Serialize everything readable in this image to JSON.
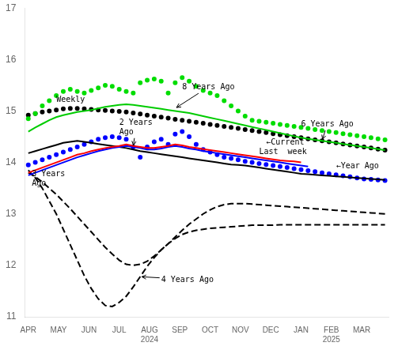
{
  "chart_data": {
    "type": "line",
    "x": [
      0,
      1,
      2,
      3,
      4,
      5,
      6,
      7,
      8,
      9,
      10,
      11,
      12,
      13,
      14,
      15,
      16,
      17,
      18,
      19,
      20,
      21,
      22,
      23,
      24,
      25,
      26,
      27,
      28,
      29,
      30,
      31,
      32,
      33,
      34,
      35,
      36,
      37,
      38,
      39,
      40,
      41,
      42,
      43,
      44,
      45,
      46,
      47,
      48,
      49,
      50,
      51
    ],
    "xlim": [
      -0.5,
      51.5
    ],
    "xticks": [
      {
        "value": 0,
        "label": "APR"
      },
      {
        "value": 4.333333333333333,
        "label": "MAY"
      },
      {
        "value": 8.666666666666666,
        "label": "JUN"
      },
      {
        "value": 13,
        "label": "JUL"
      },
      {
        "value": 17.333333333333332,
        "label": "AUG\n2024"
      },
      {
        "value": 21.666666666666668,
        "label": "SEP"
      },
      {
        "value": 26,
        "label": "OCT"
      },
      {
        "value": 30.333333333333332,
        "label": "NOV"
      },
      {
        "value": 34.666666666666664,
        "label": "DEC"
      },
      {
        "value": 39,
        "label": "JAN"
      },
      {
        "value": 43.333333333333336,
        "label": "FEB\n2025"
      },
      {
        "value": 47.666666666666664,
        "label": "MAR"
      }
    ],
    "ylim": [
      11,
      17
    ],
    "yticks": [
      11,
      12,
      13,
      14,
      15,
      16,
      17
    ],
    "grid": false,
    "series": [
      {
        "color": "#000000",
        "line_style": "dashed",
        "marker": "none",
        "values": [
          13.85,
          13.7,
          13.5,
          13.25,
          13.0,
          12.7,
          12.4,
          12.1,
          11.8,
          11.55,
          11.35,
          11.22,
          11.2,
          11.28,
          11.4,
          11.58,
          11.78,
          11.98,
          12.15,
          12.3,
          12.42,
          12.52,
          12.6,
          12.65,
          12.68,
          12.7,
          12.72,
          12.73,
          12.74,
          12.75,
          12.76,
          12.77,
          12.78,
          12.78,
          12.78,
          12.78,
          12.79,
          12.79,
          12.79,
          12.79,
          12.79,
          12.79,
          12.79,
          12.79,
          12.79,
          12.79,
          12.79,
          12.79,
          12.79,
          12.79,
          12.79,
          12.79
        ]
      },
      {
        "color": "#000000",
        "line_style": "dashed",
        "marker": "none",
        "values": [
          13.8,
          13.72,
          13.62,
          13.5,
          13.38,
          13.24,
          13.1,
          12.95,
          12.8,
          12.65,
          12.5,
          12.35,
          12.22,
          12.1,
          12.02,
          12.0,
          12.02,
          12.08,
          12.18,
          12.3,
          12.42,
          12.55,
          12.68,
          12.8,
          12.9,
          13.0,
          13.08,
          13.14,
          13.18,
          13.2,
          13.2,
          13.2,
          13.19,
          13.18,
          13.17,
          13.16,
          13.15,
          13.14,
          13.13,
          13.12,
          13.11,
          13.1,
          13.09,
          13.08,
          13.07,
          13.06,
          13.05,
          13.04,
          13.03,
          13.02,
          13.01,
          13.0
        ]
      },
      {
        "color": "#000000",
        "line_style": "none",
        "marker": "circle",
        "values": [
          14.92,
          14.95,
          14.98,
          15.0,
          15.02,
          15.04,
          15.05,
          15.05,
          15.04,
          15.03,
          15.02,
          15.01,
          15.0,
          14.99,
          14.98,
          14.96,
          14.94,
          14.92,
          14.9,
          14.88,
          14.86,
          14.84,
          14.82,
          14.8,
          14.78,
          14.76,
          14.74,
          14.72,
          14.7,
          14.68,
          14.66,
          14.64,
          14.62,
          14.6,
          14.58,
          14.56,
          14.54,
          14.52,
          14.5,
          14.48,
          14.46,
          14.44,
          14.42,
          14.4,
          14.38,
          14.36,
          14.34,
          14.32,
          14.3,
          14.28,
          14.26,
          14.24
        ]
      },
      {
        "color": "#0000FF",
        "line_style": "none",
        "marker": "circle",
        "values": [
          13.95,
          14.0,
          14.05,
          14.1,
          14.15,
          14.2,
          14.25,
          14.3,
          14.35,
          14.4,
          14.45,
          14.48,
          14.5,
          14.48,
          14.45,
          14.3,
          14.1,
          14.3,
          14.4,
          14.45,
          14.35,
          14.55,
          14.6,
          14.5,
          14.35,
          14.25,
          14.2,
          14.15,
          14.1,
          14.08,
          14.05,
          14.02,
          14.0,
          13.98,
          13.96,
          13.94,
          13.92,
          13.9,
          13.88,
          13.86,
          13.84,
          13.82,
          13.8,
          13.78,
          13.76,
          13.74,
          13.72,
          13.7,
          13.68,
          13.67,
          13.66,
          13.65
        ]
      },
      {
        "color": "#00DD00",
        "line_style": "none",
        "marker": "circle",
        "values": [
          14.85,
          14.95,
          15.1,
          15.2,
          15.3,
          15.38,
          15.42,
          15.38,
          15.35,
          15.4,
          15.45,
          15.5,
          15.48,
          15.42,
          15.38,
          15.35,
          15.55,
          15.6,
          15.62,
          15.58,
          15.35,
          15.55,
          15.65,
          15.58,
          15.48,
          15.4,
          15.35,
          15.3,
          15.2,
          15.1,
          15.0,
          14.9,
          14.82,
          14.8,
          14.78,
          14.76,
          14.74,
          14.72,
          14.7,
          14.68,
          14.66,
          14.64,
          14.62,
          14.6,
          14.58,
          14.56,
          14.54,
          14.52,
          14.5,
          14.48,
          14.46,
          14.44
        ]
      },
      {
        "color": "#000000",
        "line_style": "solid",
        "marker": "none",
        "values": [
          14.18,
          14.22,
          14.26,
          14.3,
          14.34,
          14.38,
          14.4,
          14.42,
          14.4,
          14.38,
          14.36,
          14.34,
          14.32,
          14.3,
          14.28,
          14.25,
          14.22,
          14.2,
          14.18,
          14.16,
          14.14,
          14.12,
          14.1,
          14.08,
          14.06,
          14.04,
          14.02,
          14.0,
          13.98,
          13.96,
          13.95,
          13.94,
          13.92,
          13.9,
          13.88,
          13.86,
          13.84,
          13.82,
          13.8,
          13.78,
          13.77,
          13.76,
          13.75,
          13.74,
          13.73,
          13.72,
          13.71,
          13.7,
          13.69,
          13.68,
          13.67,
          13.66
        ]
      },
      {
        "color": "#00CC00",
        "line_style": "solid",
        "marker": "none",
        "values": [
          14.6,
          14.68,
          14.75,
          14.82,
          14.88,
          14.92,
          14.95,
          14.98,
          15.0,
          15.02,
          15.05,
          15.08,
          15.1,
          15.12,
          15.13,
          15.12,
          15.1,
          15.08,
          15.06,
          15.04,
          15.02,
          15.0,
          14.98,
          14.96,
          14.93,
          14.9,
          14.87,
          14.84,
          14.81,
          14.78,
          14.75,
          14.72,
          14.69,
          14.66,
          14.63,
          14.6,
          14.57,
          14.54,
          14.51,
          14.48,
          14.46,
          14.44,
          14.42,
          14.4,
          14.38,
          14.36,
          14.34,
          14.32,
          14.3,
          14.28,
          14.26,
          14.24
        ]
      },
      {
        "color": "#0000FF",
        "line_style": "solid",
        "marker": "none",
        "values": [
          13.75,
          13.8,
          13.85,
          13.9,
          13.95,
          14.0,
          14.05,
          14.1,
          14.14,
          14.18,
          14.22,
          14.25,
          14.28,
          14.3,
          14.32,
          14.3,
          14.28,
          14.25,
          14.25,
          14.27,
          14.3,
          14.32,
          14.3,
          14.27,
          14.25,
          14.22,
          14.2,
          14.18,
          14.16,
          14.14,
          14.12,
          14.1,
          14.08,
          14.06,
          14.04,
          14.02,
          14.0,
          13.98,
          13.96,
          13.94,
          13.92,
          null,
          null,
          null,
          null,
          null,
          null,
          null,
          null,
          null,
          null,
          null
        ]
      },
      {
        "color": "#FF0000",
        "line_style": "solid",
        "marker": "none",
        "values": [
          13.8,
          13.85,
          13.9,
          13.95,
          14.0,
          14.05,
          14.1,
          14.15,
          14.18,
          14.22,
          14.25,
          14.28,
          14.3,
          14.32,
          14.35,
          14.32,
          14.3,
          14.28,
          14.28,
          14.3,
          14.32,
          14.35,
          14.33,
          14.3,
          14.28,
          14.26,
          14.24,
          14.22,
          14.2,
          14.18,
          14.16,
          14.14,
          14.12,
          14.1,
          14.08,
          14.06,
          14.04,
          14.03,
          14.02,
          14.0,
          null,
          null,
          null,
          null,
          null,
          null,
          null,
          null,
          null,
          null,
          null,
          null
        ]
      }
    ],
    "annotations": [
      {
        "text": "Weekly",
        "x": 6,
        "y": 15.38,
        "text_x": 4,
        "text_y": 15.18,
        "arrow": true
      },
      {
        "text": "8 Years Ago",
        "x": 21,
        "y": 15.05,
        "text_x": 22,
        "text_y": 15.42,
        "arrow": true
      },
      {
        "text": "6 Years Ago",
        "x": 42,
        "y": 14.42,
        "text_x": 39,
        "text_y": 14.7,
        "arrow": true
      },
      {
        "text": "←Current",
        "x": 33,
        "y": 14.28,
        "text_x": 34,
        "text_y": 14.35,
        "arrow": false
      },
      {
        "text": "Last  week",
        "x": 34,
        "y": 14.27,
        "text_x": 33,
        "text_y": 14.17,
        "arrow": false
      },
      {
        "text": "←Year Ago",
        "x": 45,
        "y": 13.75,
        "text_x": 44,
        "text_y": 13.88,
        "arrow": false
      },
      {
        "text": "2 Years\nAgo",
        "x": 15,
        "y": 14.3,
        "text_x": 13,
        "text_y": 14.55,
        "arrow": true
      },
      {
        "text": "3 Years\nAgo",
        "x": 2,
        "y": 13.72,
        "text_x": 0.5,
        "text_y": 13.55,
        "arrow": true
      },
      {
        "text": "4 Years Ago",
        "x": 16,
        "y": 11.78,
        "text_x": 19,
        "text_y": 11.68,
        "arrow": true
      }
    ]
  }
}
